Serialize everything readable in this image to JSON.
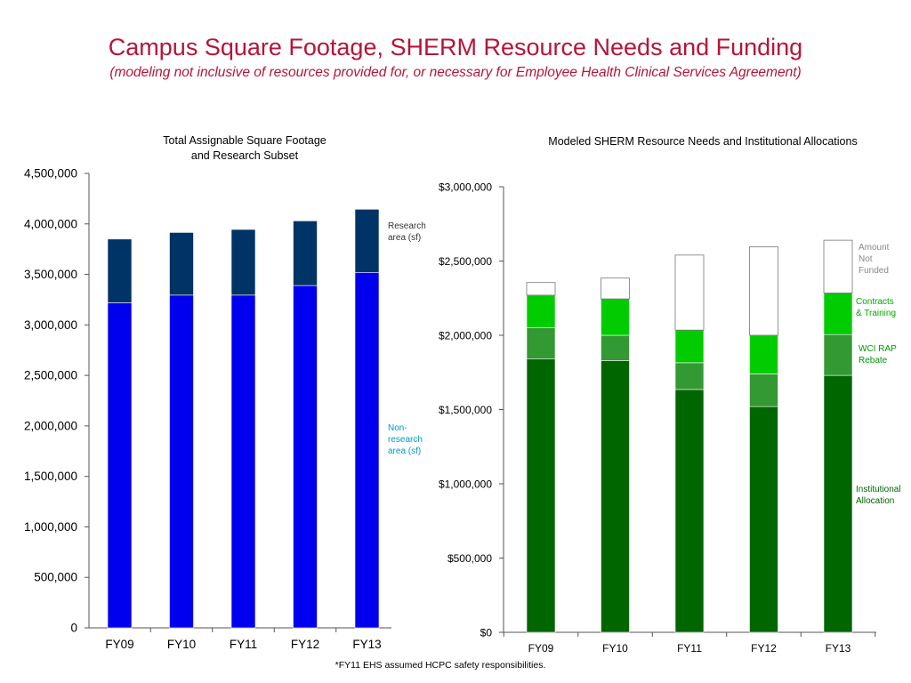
{
  "title": "Campus Square Footage, SHERM Resource Needs and Funding",
  "subtitle": "(modeling not inclusive of resources provided for, or necessary for Employee Health Clinical Services Agreement)",
  "footnote": "*FY11 EHS assumed HCPC safety responsibilities.",
  "chart_data": [
    {
      "type": "bar",
      "stacked": true,
      "title_lines": [
        "Total Assignable Square Footage",
        "and Research Subset"
      ],
      "categories": [
        "FY09",
        "FY10",
        "FY11",
        "FY12",
        "FY13"
      ],
      "y_ticks": [
        "0",
        "500,000",
        "1,000,000",
        "1,500,000",
        "2,000,000",
        "2,500,000",
        "3,000,000",
        "3,500,000",
        "4,000,000",
        "4,500,000"
      ],
      "ylim": [
        0,
        4500000
      ],
      "grid": false,
      "series": [
        {
          "name_lines": [
            "Non-",
            "research",
            "area (sf)"
          ],
          "color": "#0000ee",
          "label_color": "#0099cc",
          "values": [
            3220000,
            3295000,
            3295000,
            3390000,
            3520000
          ]
        },
        {
          "name_lines": [
            "Research",
            "area (sf)"
          ],
          "color": "#003366",
          "label_color": "#333333",
          "values": [
            630000,
            620000,
            650000,
            640000,
            625000
          ]
        }
      ]
    },
    {
      "type": "bar",
      "stacked": true,
      "title_lines": [
        "Modeled SHERM Resource Needs and Institutional Allocations"
      ],
      "categories": [
        "FY09",
        "FY10",
        "FY11",
        "FY12",
        "FY13"
      ],
      "y_ticks": [
        "$0",
        "$500,000",
        "$1,000,000",
        "$1,500,000",
        "$2,000,000",
        "$2,500,000",
        "$3,000,000"
      ],
      "ylim": [
        0,
        3000000
      ],
      "grid": false,
      "series": [
        {
          "name_lines": [
            "Institutional",
            "Allocation"
          ],
          "color": "#006600",
          "label_color": "#006600",
          "values": [
            1840000,
            1830000,
            1635000,
            1520000,
            1730000
          ]
        },
        {
          "name_lines": [
            "WCI RAP",
            "Rebate"
          ],
          "color": "#339933",
          "label_color": "#009900",
          "values": [
            210000,
            170000,
            180000,
            220000,
            275000
          ]
        },
        {
          "name_lines": [
            "Contracts",
            "& Training"
          ],
          "color": "#00cc00",
          "label_color": "#00aa00",
          "values": [
            220000,
            245000,
            220000,
            260000,
            280000
          ]
        },
        {
          "name_lines": [
            "Amount",
            "Not",
            "Funded"
          ],
          "color": "#ffffff",
          "label_color": "#888888",
          "values": [
            85000,
            140000,
            505000,
            595000,
            355000
          ]
        }
      ]
    }
  ]
}
